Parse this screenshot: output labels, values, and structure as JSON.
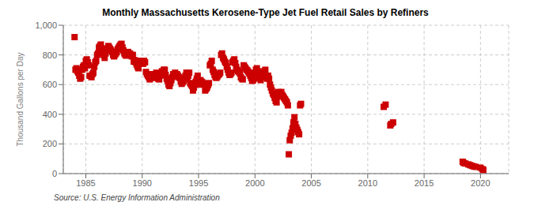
{
  "chart_data": {
    "type": "scatter",
    "title": "Monthly Massachusetts Kerosene-Type Jet Fuel Retail Sales by Refiners",
    "ylabel": "Thousand Gallons per Day",
    "annotations": [
      "Source: U.S. Energy Information Administration"
    ],
    "color": "#cc0000",
    "marker": "square",
    "grid": true,
    "xlim": [
      1983.0,
      2022.5
    ],
    "ylim": [
      0,
      1000
    ],
    "xticks": [
      1985,
      1990,
      1995,
      2000,
      2005,
      2010,
      2015,
      2020
    ],
    "yticks": [
      0,
      200,
      400,
      600,
      800,
      {
        "value": 1000,
        "label": "1,000"
      }
    ],
    "x": [
      1984.0,
      1984.083,
      1984.167,
      1984.25,
      1984.333,
      1984.417,
      1984.5,
      1984.583,
      1984.667,
      1984.75,
      1984.833,
      1984.917,
      1985.0,
      1985.083,
      1985.167,
      1985.25,
      1985.333,
      1985.417,
      1985.5,
      1985.583,
      1985.667,
      1985.75,
      1985.833,
      1985.917,
      1986.0,
      1986.083,
      1986.167,
      1986.25,
      1986.333,
      1986.417,
      1986.5,
      1986.583,
      1986.667,
      1986.75,
      1986.833,
      1986.917,
      1987.0,
      1987.083,
      1987.167,
      1987.25,
      1987.333,
      1987.417,
      1987.5,
      1987.583,
      1987.667,
      1987.75,
      1987.833,
      1987.917,
      1988.0,
      1988.083,
      1988.167,
      1988.25,
      1988.333,
      1988.417,
      1988.5,
      1988.583,
      1988.667,
      1988.75,
      1988.833,
      1988.917,
      1989.0,
      1989.083,
      1989.167,
      1989.25,
      1989.333,
      1989.417,
      1989.5,
      1989.583,
      1989.667,
      1989.75,
      1989.833,
      1989.917,
      1990.0,
      1990.083,
      1990.167,
      1990.25,
      1990.333,
      1990.417,
      1990.5,
      1990.583,
      1990.667,
      1990.75,
      1990.833,
      1990.917,
      1991.0,
      1991.083,
      1991.167,
      1991.25,
      1991.333,
      1991.417,
      1991.5,
      1991.583,
      1991.667,
      1991.75,
      1991.833,
      1991.917,
      1992.0,
      1992.083,
      1992.167,
      1992.25,
      1992.333,
      1992.417,
      1992.5,
      1992.583,
      1992.667,
      1992.75,
      1992.833,
      1992.917,
      1993.0,
      1993.083,
      1993.167,
      1993.25,
      1993.333,
      1993.417,
      1993.5,
      1993.583,
      1993.667,
      1993.75,
      1993.833,
      1993.917,
      1994.0,
      1994.083,
      1994.167,
      1994.25,
      1994.333,
      1994.417,
      1994.5,
      1994.583,
      1994.667,
      1994.75,
      1994.833,
      1994.917,
      1995.0,
      1995.083,
      1995.167,
      1995.25,
      1995.333,
      1995.417,
      1995.5,
      1995.583,
      1995.667,
      1995.75,
      1995.833,
      1995.917,
      1996.0,
      1996.083,
      1996.167,
      1996.25,
      1996.333,
      1996.417,
      1996.5,
      1996.583,
      1996.667,
      1996.75,
      1996.833,
      1996.917,
      1997.0,
      1997.083,
      1997.167,
      1997.25,
      1997.333,
      1997.417,
      1997.5,
      1997.583,
      1997.667,
      1997.75,
      1997.833,
      1997.917,
      1998.0,
      1998.083,
      1998.167,
      1998.25,
      1998.333,
      1998.417,
      1998.5,
      1998.583,
      1998.667,
      1998.75,
      1998.833,
      1998.917,
      1999.0,
      1999.083,
      1999.167,
      1999.25,
      1999.333,
      1999.417,
      1999.5,
      1999.583,
      1999.667,
      1999.75,
      1999.833,
      1999.917,
      2000.0,
      2000.083,
      2000.167,
      2000.25,
      2000.333,
      2000.417,
      2000.5,
      2000.583,
      2000.667,
      2000.75,
      2000.833,
      2000.917,
      2001.0,
      2001.083,
      2001.167,
      2001.25,
      2001.333,
      2001.417,
      2001.5,
      2001.583,
      2001.667,
      2001.75,
      2001.833,
      2001.917,
      2002.0,
      2002.083,
      2002.167,
      2002.25,
      2002.333,
      2002.417,
      2002.5,
      2002.583,
      2002.667,
      2002.75,
      2002.833,
      2002.917,
      2003.0,
      2003.083,
      2003.167,
      2003.25,
      2003.333,
      2003.417,
      2003.5,
      2003.583,
      2003.667,
      2003.75,
      2003.833,
      2003.917,
      2004.0,
      2004.083,
      2011.417,
      2011.583,
      2012.0,
      2012.083,
      2012.25,
      2018.417,
      2018.5,
      2018.667,
      2018.917,
      2019.083,
      2019.25,
      2019.417,
      2019.583,
      2020.0,
      2020.167,
      2020.25
    ],
    "values": [
      920,
      700,
      710,
      690,
      680,
      660,
      640,
      650,
      700,
      720,
      730,
      710,
      760,
      770,
      750,
      730,
      660,
      660,
      650,
      670,
      680,
      720,
      750,
      760,
      800,
      810,
      850,
      860,
      870,
      845,
      820,
      800,
      780,
      810,
      830,
      840,
      860,
      850,
      840,
      830,
      820,
      800,
      790,
      800,
      810,
      820,
      840,
      850,
      860,
      870,
      875,
      850,
      830,
      810,
      800,
      795,
      805,
      820,
      800,
      810,
      800,
      790,
      800,
      755,
      765,
      750,
      735,
      720,
      710,
      755,
      760,
      750,
      750,
      740,
      760,
      750,
      685,
      670,
      660,
      650,
      635,
      645,
      660,
      670,
      670,
      645,
      650,
      680,
      660,
      640,
      635,
      660,
      675,
      690,
      680,
      700,
      700,
      665,
      640,
      625,
      600,
      590,
      610,
      630,
      650,
      670,
      660,
      680,
      660,
      670,
      660,
      650,
      645,
      620,
      605,
      615,
      625,
      640,
      660,
      680,
      640,
      660,
      680,
      610,
      600,
      590,
      560,
      580,
      600,
      620,
      640,
      660,
      600,
      620,
      630,
      620,
      615,
      605,
      600,
      560,
      570,
      580,
      595,
      610,
      730,
      740,
      760,
      700,
      685,
      665,
      650,
      645,
      655,
      665,
      670,
      680,
      800,
      810,
      780,
      770,
      755,
      745,
      720,
      700,
      680,
      665,
      670,
      680,
      750,
      760,
      770,
      745,
      720,
      700,
      690,
      685,
      675,
      650,
      640,
      635,
      730,
      720,
      710,
      700,
      695,
      685,
      675,
      660,
      645,
      625,
      630,
      640,
      680,
      700,
      710,
      690,
      665,
      645,
      630,
      650,
      670,
      685,
      690,
      700,
      650,
      640,
      660,
      640,
      600,
      580,
      560,
      540,
      530,
      510,
      490,
      480,
      540,
      550,
      520,
      540,
      550,
      530,
      520,
      510,
      500,
      490,
      480,
      460,
      130,
      225,
      255,
      275,
      305,
      345,
      380,
      335,
      310,
      295,
      280,
      265,
      460,
      470,
      450,
      465,
      325,
      335,
      345,
      80,
      72,
      68,
      62,
      57,
      52,
      48,
      45,
      40,
      30,
      25
    ]
  }
}
